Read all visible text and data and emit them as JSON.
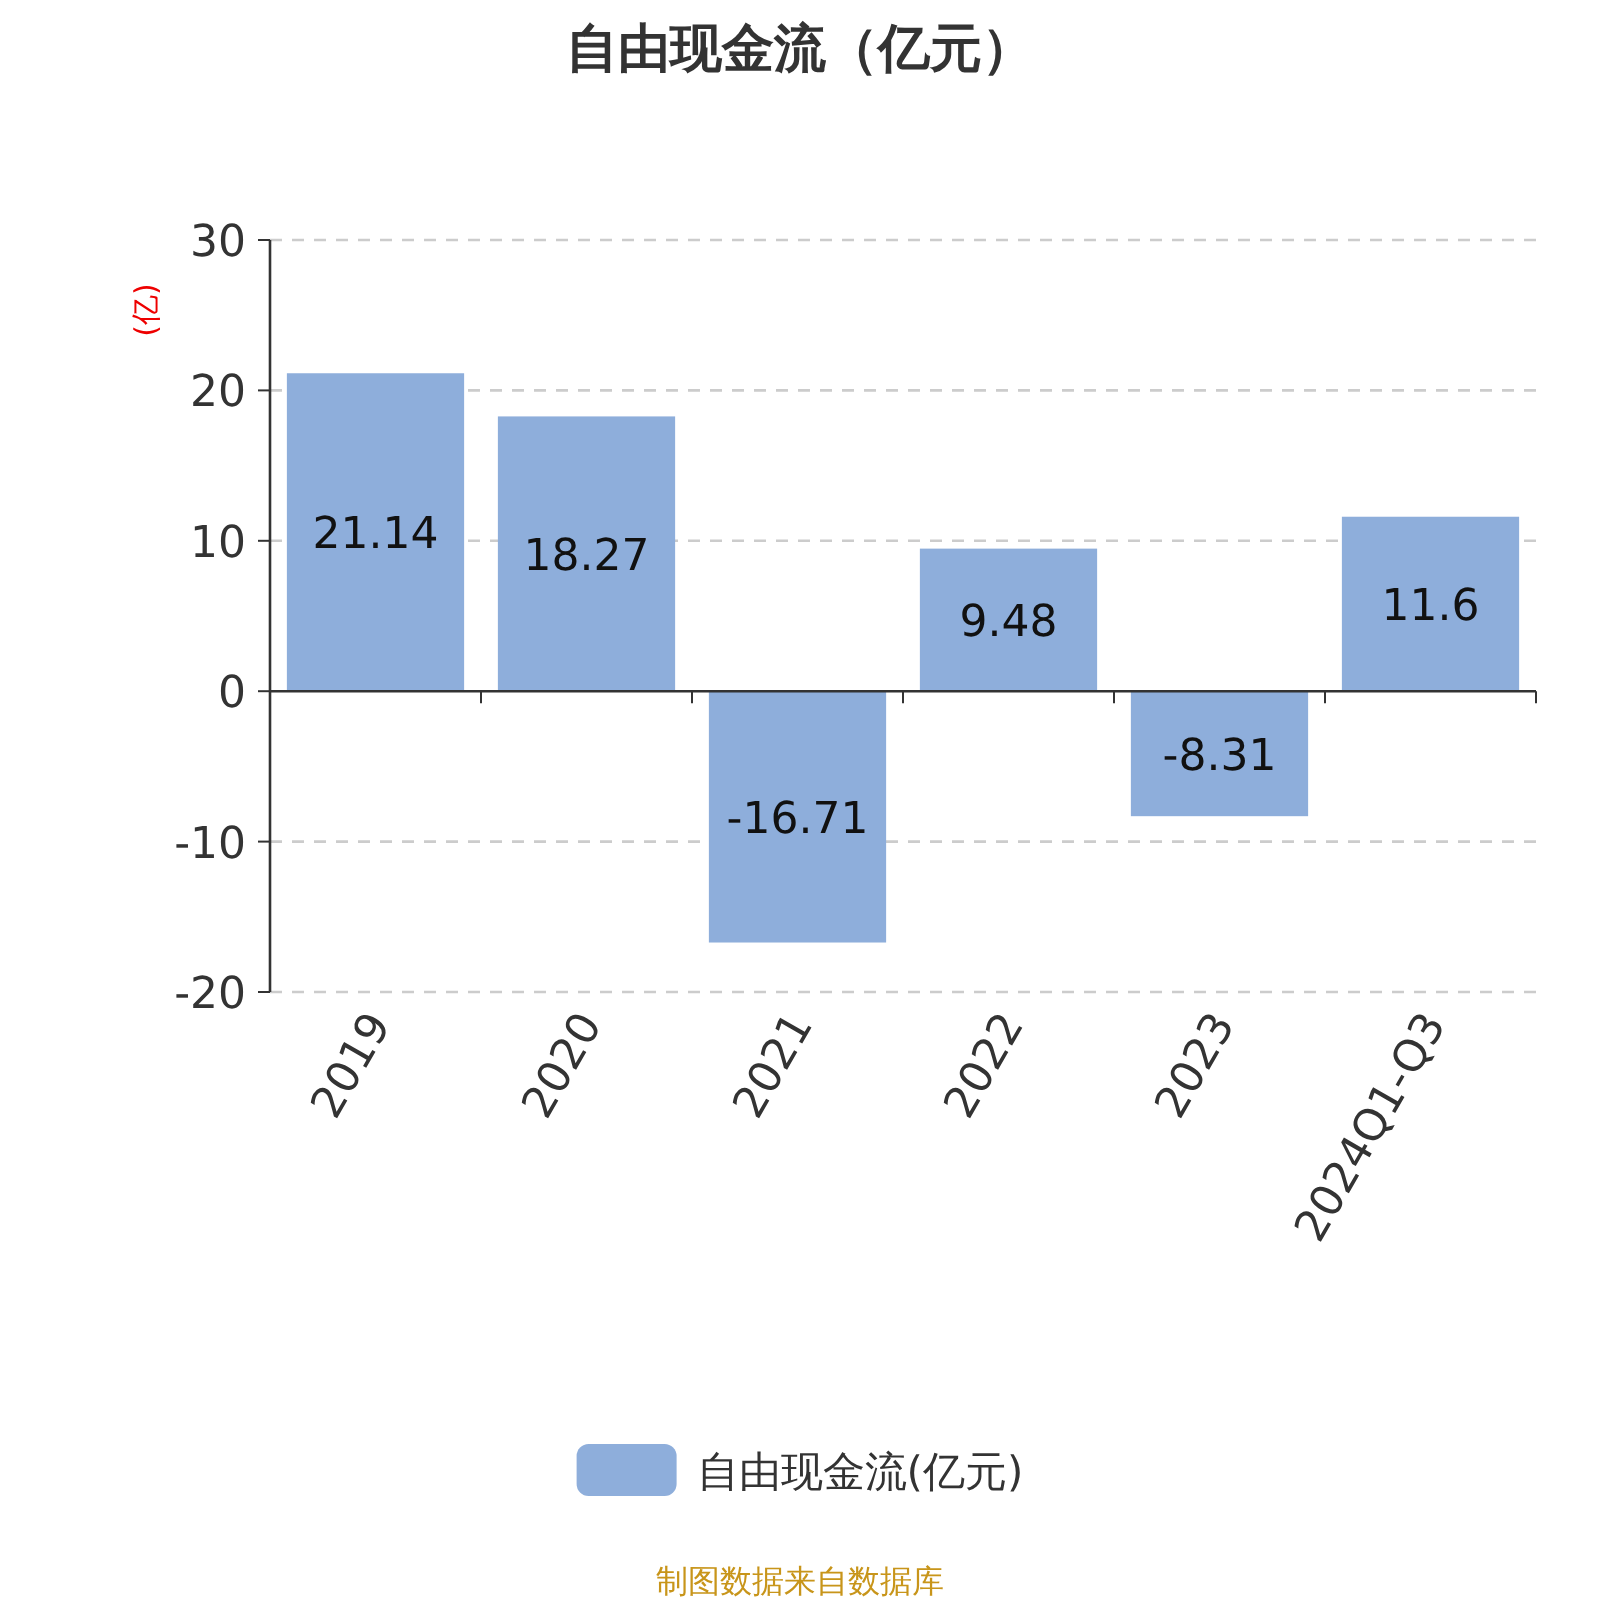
{
  "chart_data": {
    "type": "bar",
    "title": "自由现金流（亿元）",
    "ylabel": "(亿)",
    "categories": [
      "2019",
      "2020",
      "2021",
      "2022",
      "2023",
      "2024Q1-Q3"
    ],
    "series": [
      {
        "name": "自由现金流(亿元)",
        "color": "#8eaedb",
        "values": [
          21.14,
          18.27,
          -16.71,
          9.48,
          -8.31,
          11.6
        ]
      }
    ],
    "ylim": [
      -20,
      30
    ],
    "yticks": [
      -20,
      -10,
      0,
      10,
      20,
      30
    ],
    "grid": "y",
    "legend": "bottom",
    "data_labels": true,
    "annotations": [
      "制图数据来自数据库"
    ]
  }
}
